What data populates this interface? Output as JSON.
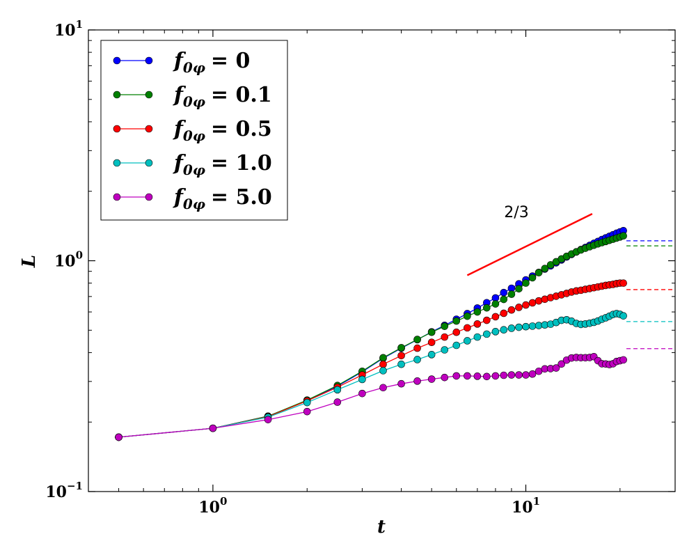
{
  "chart_data": {
    "type": "line",
    "xscale": "log",
    "yscale": "log",
    "xlim": [
      0.4,
      30
    ],
    "ylim": [
      0.1,
      10
    ],
    "xlabel": "t",
    "ylabel": "L",
    "x_ticks": [
      {
        "value": 1,
        "label": "10",
        "exp": "0"
      },
      {
        "value": 10,
        "label": "10",
        "exp": "1"
      }
    ],
    "y_ticks": [
      {
        "value": 0.1,
        "label": "10",
        "exp": "−1"
      },
      {
        "value": 1,
        "label": "10",
        "exp": "0"
      },
      {
        "value": 10,
        "label": "10",
        "exp": "1"
      }
    ],
    "legend": {
      "position": "top-left"
    },
    "series": [
      {
        "name": "f0φ = 0",
        "legend_base": "f",
        "legend_sub": "0φ",
        "legend_value": "= 0",
        "color": "#0000ff",
        "x": [
          0.5,
          1.0,
          1.5,
          2.0,
          2.5,
          3.0,
          3.5,
          4.0,
          4.5,
          5.0,
          5.5,
          6.0,
          6.5,
          7.0,
          7.5,
          8.0,
          8.5,
          9.0,
          9.5,
          10,
          10.5,
          11,
          11.5,
          12,
          12.5,
          13,
          13.5,
          14,
          14.5,
          15,
          15.5,
          16,
          16.5,
          17,
          17.5,
          18,
          18.5,
          19,
          19.5,
          20,
          20.5
        ],
        "y": [
          0.172,
          0.188,
          0.212,
          0.248,
          0.286,
          0.33,
          0.378,
          0.418,
          0.455,
          0.492,
          0.525,
          0.558,
          0.59,
          0.624,
          0.658,
          0.69,
          0.728,
          0.76,
          0.794,
          0.826,
          0.858,
          0.89,
          0.92,
          0.95,
          0.98,
          1.008,
          1.038,
          1.065,
          1.092,
          1.118,
          1.142,
          1.166,
          1.19,
          1.212,
          1.235,
          1.256,
          1.276,
          1.296,
          1.316,
          1.334,
          1.35
        ],
        "asymptote": 1.22
      },
      {
        "name": "f0φ = 0.1",
        "legend_base": "f",
        "legend_sub": "0φ",
        "legend_value": "= 0.1",
        "color": "#008000",
        "x": [
          0.5,
          1.0,
          1.5,
          2.0,
          2.5,
          3.0,
          3.5,
          4.0,
          4.5,
          5.0,
          5.5,
          6.0,
          6.5,
          7.0,
          7.5,
          8.0,
          8.5,
          9.0,
          9.5,
          10,
          10.5,
          11,
          11.5,
          12,
          12.5,
          13,
          13.5,
          14,
          14.5,
          15,
          15.5,
          16,
          16.5,
          17,
          17.5,
          18,
          18.5,
          19,
          19.5,
          20,
          20.5
        ],
        "y": [
          0.172,
          0.188,
          0.212,
          0.249,
          0.288,
          0.332,
          0.38,
          0.42,
          0.456,
          0.49,
          0.52,
          0.548,
          0.575,
          0.6,
          0.625,
          0.65,
          0.68,
          0.716,
          0.756,
          0.8,
          0.844,
          0.888,
          0.925,
          0.96,
          0.99,
          1.018,
          1.045,
          1.07,
          1.093,
          1.114,
          1.133,
          1.15,
          1.167,
          1.183,
          1.198,
          1.212,
          1.226,
          1.24,
          1.254,
          1.268,
          1.282
        ],
        "asymptote": 1.16
      },
      {
        "name": "f0φ = 0.5",
        "legend_base": "f",
        "legend_sub": "0φ",
        "legend_value": "= 0.5",
        "color": "#ff0000",
        "x": [
          0.5,
          1.0,
          1.5,
          2.0,
          2.5,
          3.0,
          3.5,
          4.0,
          4.5,
          5.0,
          5.5,
          6.0,
          6.5,
          7.0,
          7.5,
          8.0,
          8.5,
          9.0,
          9.5,
          10,
          10.5,
          11,
          11.5,
          12,
          12.5,
          13,
          13.5,
          14,
          14.5,
          15,
          15.5,
          16,
          16.5,
          17,
          17.5,
          18,
          18.5,
          19,
          19.5,
          20,
          20.5
        ],
        "y": [
          0.172,
          0.188,
          0.211,
          0.247,
          0.283,
          0.32,
          0.356,
          0.388,
          0.418,
          0.443,
          0.467,
          0.49,
          0.512,
          0.532,
          0.552,
          0.572,
          0.592,
          0.612,
          0.628,
          0.643,
          0.657,
          0.67,
          0.681,
          0.692,
          0.702,
          0.712,
          0.722,
          0.732,
          0.74,
          0.745,
          0.752,
          0.758,
          0.764,
          0.77,
          0.776,
          0.782,
          0.786,
          0.79,
          0.796,
          0.8,
          0.8
        ],
        "asymptote": 0.75
      },
      {
        "name": "f0φ = 1.0",
        "legend_base": "f",
        "legend_sub": "0φ",
        "legend_value": "= 1.0",
        "color": "#00bfbf",
        "x": [
          0.5,
          1.0,
          1.5,
          2.0,
          2.5,
          3.0,
          3.5,
          4.0,
          4.5,
          5.0,
          5.5,
          6.0,
          6.5,
          7.0,
          7.5,
          8.0,
          8.5,
          9.0,
          9.5,
          10,
          10.5,
          11,
          11.5,
          12,
          12.5,
          13,
          13.5,
          14,
          14.5,
          15,
          15.5,
          16,
          16.5,
          17,
          17.5,
          18,
          18.5,
          19,
          19.5,
          20,
          20.5
        ],
        "y": [
          0.172,
          0.188,
          0.21,
          0.243,
          0.276,
          0.306,
          0.334,
          0.356,
          0.373,
          0.392,
          0.411,
          0.43,
          0.45,
          0.467,
          0.481,
          0.493,
          0.502,
          0.51,
          0.515,
          0.518,
          0.521,
          0.524,
          0.527,
          0.531,
          0.54,
          0.552,
          0.555,
          0.547,
          0.535,
          0.53,
          0.532,
          0.536,
          0.541,
          0.548,
          0.558,
          0.566,
          0.575,
          0.585,
          0.59,
          0.586,
          0.577
        ],
        "asymptote": 0.545
      },
      {
        "name": "f0φ = 5.0",
        "legend_base": "f",
        "legend_sub": "0φ",
        "legend_value": "= 5.0",
        "color": "#bf00bf",
        "x": [
          0.5,
          1.0,
          1.5,
          2.0,
          2.5,
          3.0,
          3.5,
          4.0,
          4.5,
          5.0,
          5.5,
          6.0,
          6.5,
          7.0,
          7.5,
          8.0,
          8.5,
          9.0,
          9.5,
          10,
          10.5,
          11,
          11.5,
          12,
          12.5,
          13,
          13.5,
          14,
          14.5,
          15,
          15.5,
          16,
          16.5,
          17,
          17.5,
          18,
          18.5,
          19,
          19.5,
          20,
          20.5
        ],
        "y": [
          0.172,
          0.188,
          0.205,
          0.222,
          0.244,
          0.266,
          0.282,
          0.293,
          0.301,
          0.307,
          0.312,
          0.317,
          0.317,
          0.316,
          0.315,
          0.317,
          0.319,
          0.32,
          0.32,
          0.32,
          0.323,
          0.332,
          0.34,
          0.341,
          0.343,
          0.357,
          0.371,
          0.379,
          0.381,
          0.38,
          0.38,
          0.381,
          0.384,
          0.369,
          0.358,
          0.357,
          0.355,
          0.358,
          0.366,
          0.369,
          0.372
        ],
        "asymptote": 0.416
      }
    ],
    "reference_line": {
      "label": "2/3",
      "slope": 0.6667,
      "x_start": 6.5,
      "x_end": 16.3,
      "y_start": 0.865,
      "color": "#ff0000"
    }
  }
}
